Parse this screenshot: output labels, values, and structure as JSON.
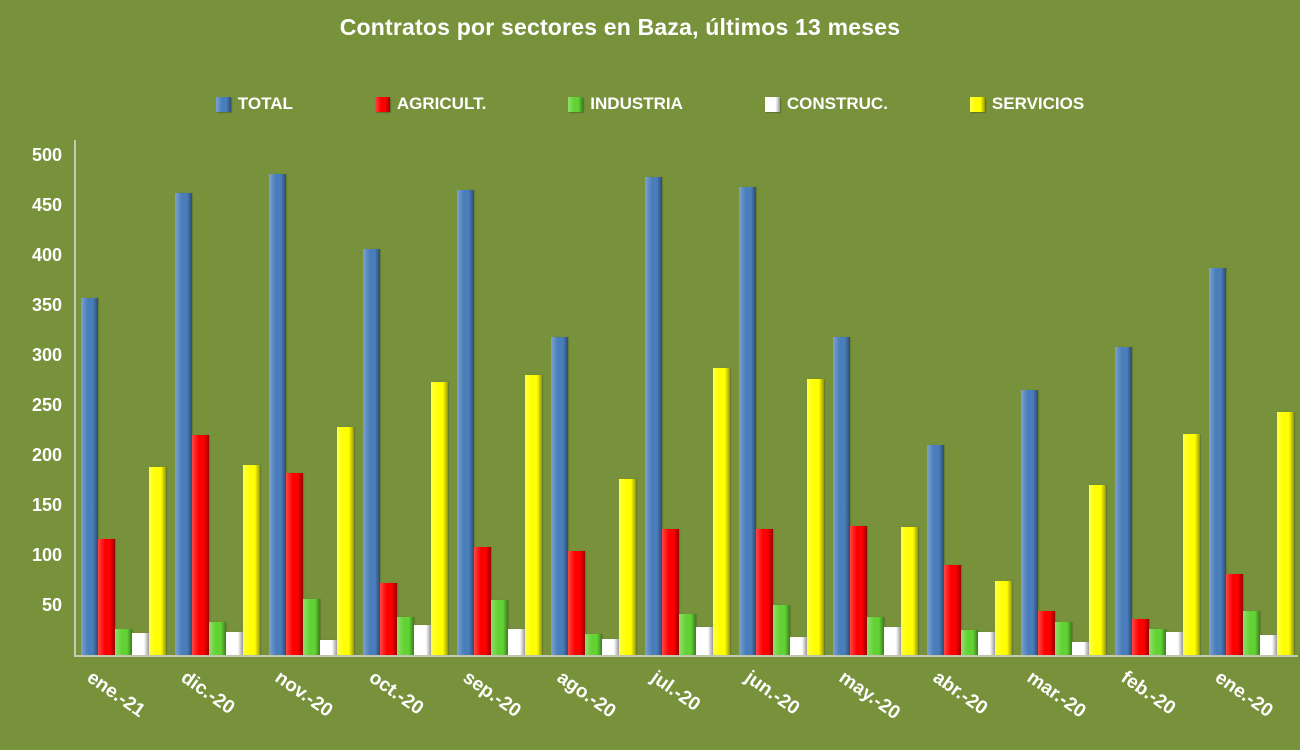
{
  "colors": {
    "background": "#78923C",
    "text": "#FFFFFF",
    "axis_line": "#C6CBB2"
  },
  "chart_data": {
    "type": "bar",
    "title": "Contratos por sectores en Baza, últimos 13 meses",
    "categories": [
      "ene.-21",
      "dic.-20",
      "nov.-20",
      "oct.-20",
      "sep.-20",
      "ago.-20",
      "jul.-20",
      "jun.-20",
      "may.-20",
      "abr.-20",
      "mar.-20",
      "feb.-20",
      "ene.-20"
    ],
    "series": [
      {
        "name": "TOTAL",
        "color": "#4A7EBB",
        "values": [
          357,
          462,
          481,
          406,
          465,
          318,
          478,
          468,
          318,
          210,
          265,
          308,
          387
        ]
      },
      {
        "name": "AGRICULT.",
        "color": "#FE0000",
        "values": [
          116,
          220,
          182,
          72,
          108,
          104,
          126,
          126,
          129,
          90,
          44,
          36,
          81
        ]
      },
      {
        "name": "INDUSTRIA",
        "color": "#63D234",
        "values": [
          26,
          33,
          56,
          38,
          55,
          21,
          41,
          50,
          38,
          25,
          33,
          26,
          44
        ]
      },
      {
        "name": "CONSTRUC.",
        "color": "#FFFFFF",
        "values": [
          22,
          23,
          15,
          30,
          26,
          16,
          28,
          18,
          28,
          23,
          13,
          23,
          20
        ]
      },
      {
        "name": "SERVICIOS",
        "color": "#FFFF00",
        "values": [
          188,
          190,
          228,
          273,
          280,
          176,
          287,
          276,
          128,
          74,
          170,
          221,
          243
        ]
      }
    ],
    "ylim": [
      0,
      500
    ],
    "yticks": [
      50,
      100,
      150,
      200,
      250,
      300,
      350,
      400,
      450,
      500
    ],
    "legend_position": "top",
    "grid": false,
    "xlabel": "",
    "ylabel": ""
  }
}
